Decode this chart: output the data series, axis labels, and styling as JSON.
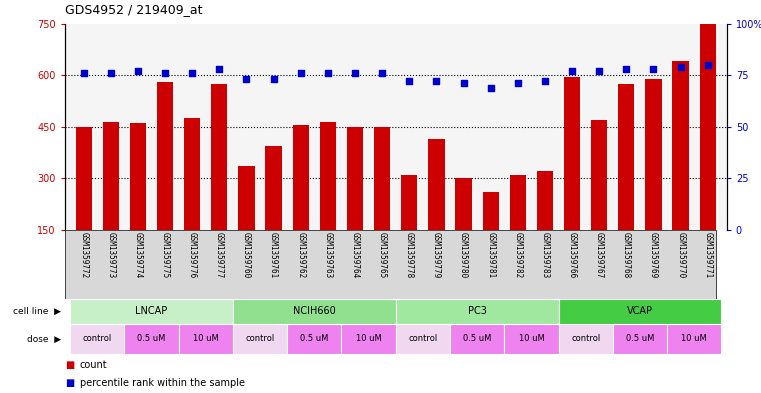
{
  "title": "GDS4952 / 219409_at",
  "samples": [
    "GSM1359772",
    "GSM1359773",
    "GSM1359774",
    "GSM1359775",
    "GSM1359776",
    "GSM1359777",
    "GSM1359760",
    "GSM1359761",
    "GSM1359762",
    "GSM1359763",
    "GSM1359764",
    "GSM1359765",
    "GSM1359778",
    "GSM1359779",
    "GSM1359780",
    "GSM1359781",
    "GSM1359782",
    "GSM1359783",
    "GSM1359766",
    "GSM1359767",
    "GSM1359768",
    "GSM1359769",
    "GSM1359770",
    "GSM1359771"
  ],
  "counts": [
    450,
    465,
    460,
    580,
    475,
    575,
    335,
    395,
    455,
    465,
    450,
    450,
    310,
    415,
    300,
    260,
    310,
    320,
    595,
    470,
    575,
    590,
    640,
    750
  ],
  "percentiles": [
    76,
    76,
    77,
    76,
    76,
    78,
    73,
    73,
    76,
    76,
    76,
    76,
    72,
    72,
    71,
    69,
    71,
    72,
    77,
    77,
    78,
    78,
    79,
    80
  ],
  "cell_line_groups": [
    {
      "label": "LNCAP",
      "start": 0,
      "end": 5,
      "color": "#c8f0c8"
    },
    {
      "label": "NCIH660",
      "start": 6,
      "end": 11,
      "color": "#90e090"
    },
    {
      "label": "PC3",
      "start": 12,
      "end": 17,
      "color": "#a0e8a0"
    },
    {
      "label": "VCAP",
      "start": 18,
      "end": 23,
      "color": "#44cc44"
    }
  ],
  "dose_groups": [
    {
      "label": "control",
      "start": 0,
      "end": 1,
      "color": "#f0d8f0"
    },
    {
      "label": "0.5 uM",
      "start": 2,
      "end": 3,
      "color": "#ee82ee"
    },
    {
      "label": "10 uM",
      "start": 4,
      "end": 5,
      "color": "#ee82ee"
    },
    {
      "label": "control",
      "start": 6,
      "end": 7,
      "color": "#f0d8f0"
    },
    {
      "label": "0.5 uM",
      "start": 8,
      "end": 9,
      "color": "#ee82ee"
    },
    {
      "label": "10 uM",
      "start": 10,
      "end": 11,
      "color": "#ee82ee"
    },
    {
      "label": "control",
      "start": 12,
      "end": 13,
      "color": "#f0d8f0"
    },
    {
      "label": "0.5 uM",
      "start": 14,
      "end": 15,
      "color": "#ee82ee"
    },
    {
      "label": "10 uM",
      "start": 16,
      "end": 17,
      "color": "#ee82ee"
    },
    {
      "label": "control",
      "start": 18,
      "end": 19,
      "color": "#f0d8f0"
    },
    {
      "label": "0.5 uM",
      "start": 20,
      "end": 21,
      "color": "#ee82ee"
    },
    {
      "label": "10 uM",
      "start": 22,
      "end": 23,
      "color": "#ee82ee"
    }
  ],
  "ylim_left": [
    150,
    750
  ],
  "ylim_right": [
    0,
    100
  ],
  "yticks_left": [
    150,
    300,
    450,
    600,
    750
  ],
  "yticks_right": [
    0,
    25,
    50,
    75,
    100
  ],
  "bar_color": "#cc0000",
  "dot_color": "#0000cc",
  "plot_bg": "#f5f5f5",
  "xtick_bg": "#d8d8d8"
}
